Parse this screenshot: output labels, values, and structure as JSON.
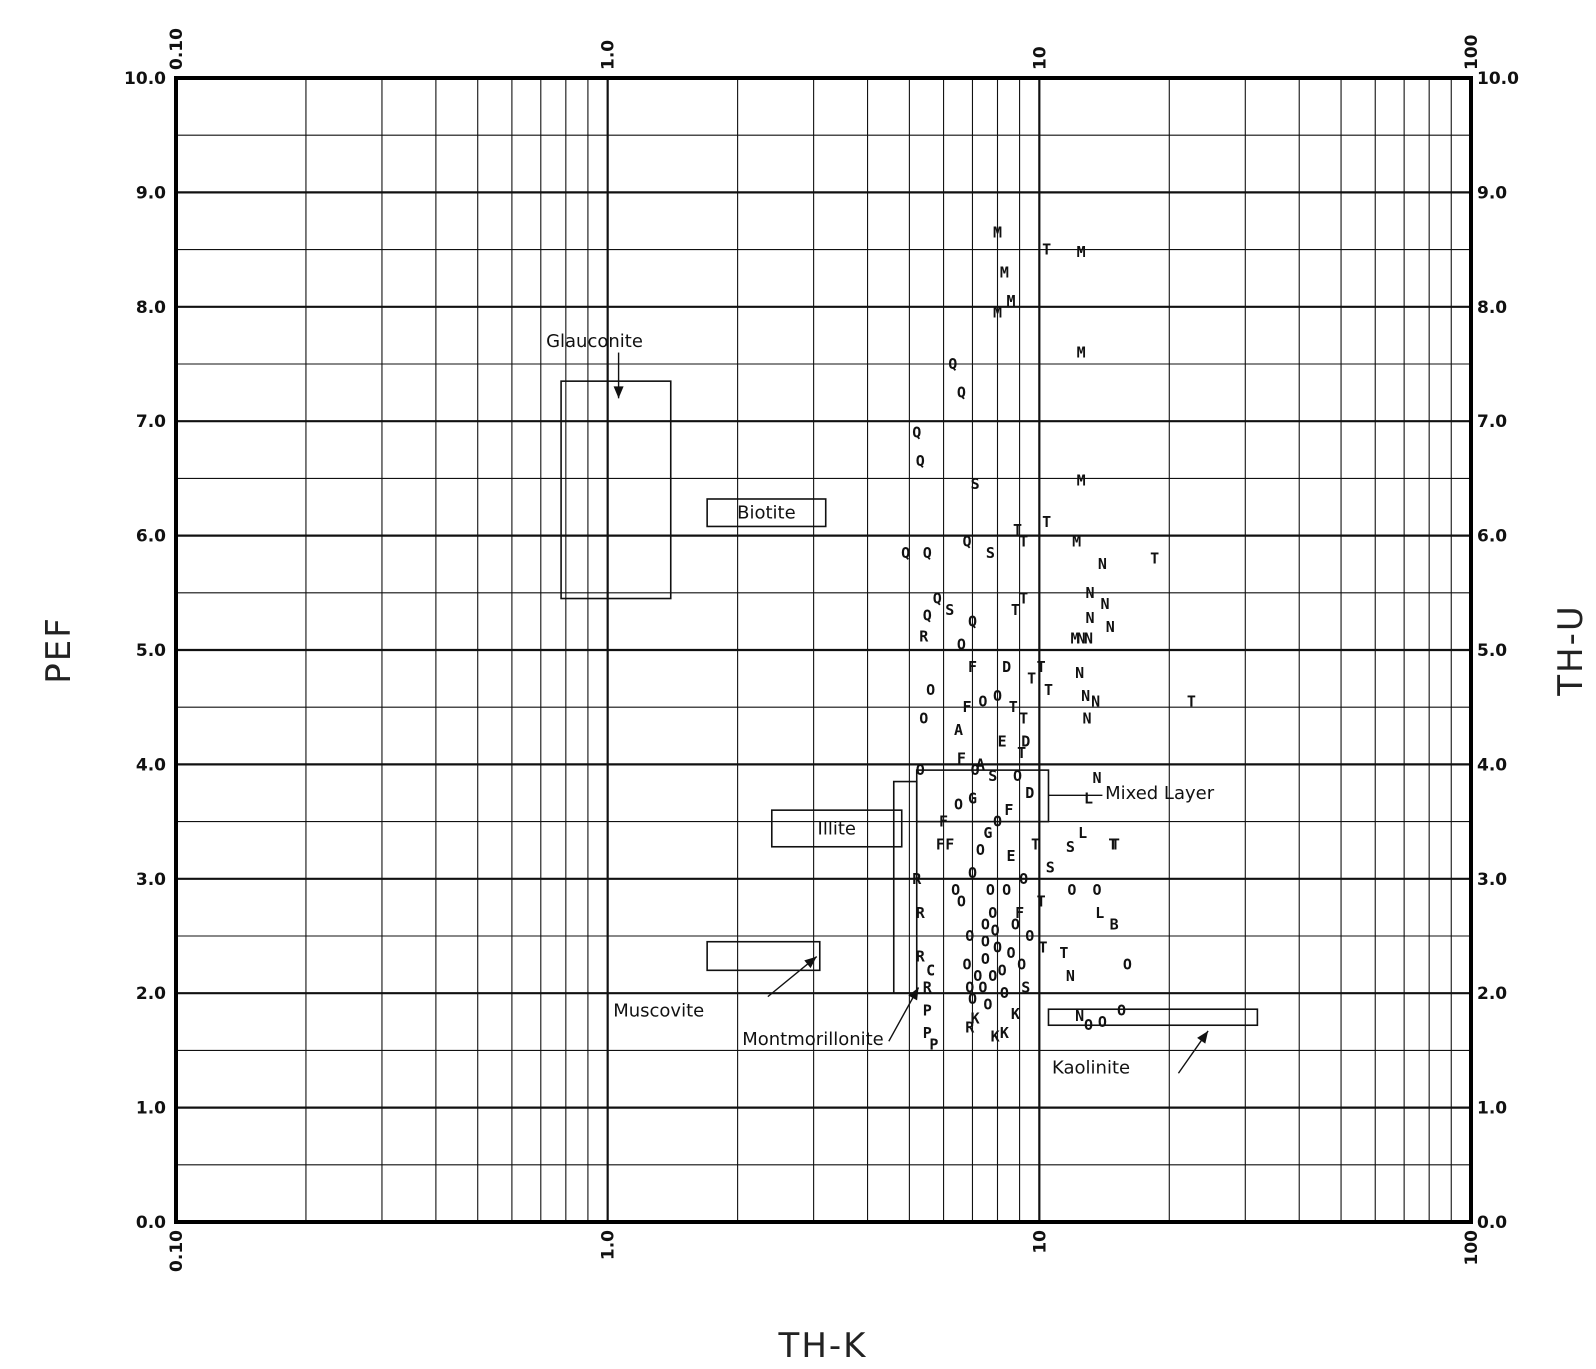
{
  "chart_data": {
    "type": "scatter",
    "title": "",
    "xlabel": "TH-K",
    "ylabel": "PEF",
    "y2label": "TH-U",
    "x_scale": "log",
    "xlim": [
      0.1,
      100
    ],
    "ylim": [
      0,
      10
    ],
    "y2lim": [
      0,
      10
    ],
    "x_ticks_bottom": [
      "0.10",
      "1.0",
      "10",
      "100"
    ],
    "x_ticks_top": [
      "0.10",
      "1.0",
      "10",
      "100"
    ],
    "y_ticks": [
      "0.0",
      "1.0",
      "2.0",
      "3.0",
      "4.0",
      "5.0",
      "6.0",
      "7.0",
      "8.0",
      "9.0",
      "10.0"
    ],
    "y2_ticks": [
      "0.0",
      "1.0",
      "2.0",
      "3.0",
      "4.0",
      "5.0",
      "6.0",
      "7.0",
      "8.0",
      "9.0",
      "10.0"
    ],
    "grid": true,
    "regions": [
      {
        "name": "Glauconite",
        "x": [
          0.78,
          1.4
        ],
        "y": [
          5.45,
          7.35
        ]
      },
      {
        "name": "Biotite",
        "x": [
          1.7,
          3.2
        ],
        "y": [
          6.08,
          6.32
        ]
      },
      {
        "name": "Illite",
        "x": [
          2.4,
          4.8
        ],
        "y": [
          3.28,
          3.6
        ]
      },
      {
        "name": "Muscovite",
        "x": [
          1.7,
          3.1
        ],
        "y": [
          2.2,
          2.45
        ]
      },
      {
        "name": "Montmorillonite",
        "x": [
          4.6,
          5.2
        ],
        "y": [
          2.0,
          3.85
        ]
      },
      {
        "name": "Mixed Layer",
        "x": [
          5.2,
          10.5
        ],
        "y": [
          3.5,
          3.95
        ]
      },
      {
        "name": "Kaolinite",
        "x": [
          10.5,
          32
        ],
        "y": [
          1.72,
          1.86
        ]
      }
    ],
    "points": [
      {
        "x": 8.0,
        "y": 8.65,
        "label": "M"
      },
      {
        "x": 8.3,
        "y": 8.3,
        "label": "M"
      },
      {
        "x": 8.6,
        "y": 8.05,
        "label": "M"
      },
      {
        "x": 8.0,
        "y": 7.95,
        "label": "M"
      },
      {
        "x": 12.5,
        "y": 8.48,
        "label": "M"
      },
      {
        "x": 10.4,
        "y": 8.5,
        "label": "T"
      },
      {
        "x": 12.5,
        "y": 7.6,
        "label": "M"
      },
      {
        "x": 12.5,
        "y": 6.48,
        "label": "M"
      },
      {
        "x": 12.2,
        "y": 5.95,
        "label": "M"
      },
      {
        "x": 12.1,
        "y": 5.1,
        "label": "M"
      },
      {
        "x": 6.3,
        "y": 7.5,
        "label": "Q"
      },
      {
        "x": 6.6,
        "y": 7.25,
        "label": "Q"
      },
      {
        "x": 5.2,
        "y": 6.9,
        "label": "Q"
      },
      {
        "x": 5.3,
        "y": 6.65,
        "label": "Q"
      },
      {
        "x": 4.9,
        "y": 5.85,
        "label": "Q"
      },
      {
        "x": 5.5,
        "y": 5.85,
        "label": "Q"
      },
      {
        "x": 6.8,
        "y": 5.95,
        "label": "Q"
      },
      {
        "x": 5.8,
        "y": 5.45,
        "label": "Q"
      },
      {
        "x": 5.5,
        "y": 5.3,
        "label": "Q"
      },
      {
        "x": 7.0,
        "y": 5.25,
        "label": "Q"
      },
      {
        "x": 6.6,
        "y": 5.05,
        "label": "O"
      },
      {
        "x": 5.6,
        "y": 4.65,
        "label": "O"
      },
      {
        "x": 5.4,
        "y": 4.4,
        "label": "O"
      },
      {
        "x": 5.3,
        "y": 3.95,
        "label": "O"
      },
      {
        "x": 6.6,
        "y": 2.8,
        "label": "O"
      },
      {
        "x": 7.1,
        "y": 6.45,
        "label": "S"
      },
      {
        "x": 7.7,
        "y": 5.85,
        "label": "S"
      },
      {
        "x": 6.2,
        "y": 5.35,
        "label": "S"
      },
      {
        "x": 5.4,
        "y": 5.12,
        "label": "R"
      },
      {
        "x": 8.9,
        "y": 6.05,
        "label": "T"
      },
      {
        "x": 10.4,
        "y": 6.12,
        "label": "T"
      },
      {
        "x": 9.2,
        "y": 5.95,
        "label": "T"
      },
      {
        "x": 9.2,
        "y": 5.45,
        "label": "T"
      },
      {
        "x": 8.8,
        "y": 5.35,
        "label": "T"
      },
      {
        "x": 18.5,
        "y": 5.8,
        "label": "T"
      },
      {
        "x": 22.5,
        "y": 4.55,
        "label": "T"
      },
      {
        "x": 14.0,
        "y": 5.75,
        "label": "N"
      },
      {
        "x": 13.1,
        "y": 5.5,
        "label": "N"
      },
      {
        "x": 14.2,
        "y": 5.4,
        "label": "N"
      },
      {
        "x": 13.1,
        "y": 5.28,
        "label": "N"
      },
      {
        "x": 14.6,
        "y": 5.2,
        "label": "N"
      },
      {
        "x": 12.5,
        "y": 5.1,
        "label": "N"
      },
      {
        "x": 13.0,
        "y": 5.1,
        "label": "N"
      },
      {
        "x": 12.4,
        "y": 4.8,
        "label": "N"
      },
      {
        "x": 12.8,
        "y": 4.6,
        "label": "N"
      },
      {
        "x": 13.5,
        "y": 4.55,
        "label": "N"
      },
      {
        "x": 12.9,
        "y": 4.4,
        "label": "N"
      },
      {
        "x": 13.6,
        "y": 3.88,
        "label": "N"
      },
      {
        "x": 12.6,
        "y": 3.4,
        "label": "L"
      },
      {
        "x": 13.0,
        "y": 3.7,
        "label": "L"
      },
      {
        "x": 15.0,
        "y": 3.3,
        "label": "T"
      },
      {
        "x": 14.8,
        "y": 3.3,
        "label": "T"
      },
      {
        "x": 11.8,
        "y": 3.28,
        "label": "S"
      },
      {
        "x": 11.9,
        "y": 2.9,
        "label": "O"
      },
      {
        "x": 13.6,
        "y": 2.9,
        "label": "O"
      },
      {
        "x": 13.8,
        "y": 2.7,
        "label": "L"
      },
      {
        "x": 14.9,
        "y": 2.6,
        "label": "B"
      },
      {
        "x": 11.4,
        "y": 2.35,
        "label": "T"
      },
      {
        "x": 16.0,
        "y": 2.25,
        "label": "O"
      },
      {
        "x": 11.8,
        "y": 2.15,
        "label": "N"
      },
      {
        "x": 12.4,
        "y": 1.8,
        "label": "N"
      },
      {
        "x": 15.5,
        "y": 1.85,
        "label": "O"
      },
      {
        "x": 14.0,
        "y": 1.75,
        "label": "O"
      },
      {
        "x": 13.0,
        "y": 1.72,
        "label": "O"
      },
      {
        "x": 5.2,
        "y": 3.0,
        "label": "R"
      },
      {
        "x": 5.3,
        "y": 2.7,
        "label": "R"
      },
      {
        "x": 5.3,
        "y": 2.32,
        "label": "R"
      },
      {
        "x": 5.6,
        "y": 2.2,
        "label": "C"
      },
      {
        "x": 5.5,
        "y": 2.05,
        "label": "R"
      },
      {
        "x": 5.5,
        "y": 1.85,
        "label": "P"
      },
      {
        "x": 5.5,
        "y": 1.65,
        "label": "P"
      },
      {
        "x": 5.7,
        "y": 1.55,
        "label": "P"
      },
      {
        "x": 6.0,
        "y": 3.5,
        "label": "F"
      },
      {
        "x": 5.9,
        "y": 3.3,
        "label": "F"
      },
      {
        "x": 6.2,
        "y": 3.3,
        "label": "F"
      },
      {
        "x": 6.5,
        "y": 4.3,
        "label": "A"
      },
      {
        "x": 6.8,
        "y": 4.5,
        "label": "F"
      },
      {
        "x": 7.3,
        "y": 4.0,
        "label": "A"
      },
      {
        "x": 7.0,
        "y": 3.7,
        "label": "G"
      },
      {
        "x": 7.6,
        "y": 3.4,
        "label": "G"
      },
      {
        "x": 8.2,
        "y": 4.2,
        "label": "E"
      },
      {
        "x": 8.6,
        "y": 3.2,
        "label": "E"
      },
      {
        "x": 9.5,
        "y": 3.75,
        "label": "D"
      },
      {
        "x": 8.4,
        "y": 4.85,
        "label": "D"
      },
      {
        "x": 9.3,
        "y": 4.2,
        "label": "D"
      },
      {
        "x": 6.6,
        "y": 4.05,
        "label": "F"
      },
      {
        "x": 7.0,
        "y": 3.05,
        "label": "O"
      },
      {
        "x": 7.5,
        "y": 2.6,
        "label": "O"
      },
      {
        "x": 8.0,
        "y": 2.4,
        "label": "O"
      },
      {
        "x": 7.8,
        "y": 2.15,
        "label": "O"
      },
      {
        "x": 7.4,
        "y": 2.05,
        "label": "O"
      },
      {
        "x": 7.0,
        "y": 1.95,
        "label": "O"
      },
      {
        "x": 7.1,
        "y": 1.78,
        "label": "K"
      },
      {
        "x": 6.9,
        "y": 1.7,
        "label": "R"
      },
      {
        "x": 7.9,
        "y": 1.62,
        "label": "K"
      },
      {
        "x": 8.3,
        "y": 1.65,
        "label": "K"
      },
      {
        "x": 8.8,
        "y": 1.82,
        "label": "K"
      },
      {
        "x": 9.3,
        "y": 2.05,
        "label": "S"
      },
      {
        "x": 10.2,
        "y": 2.4,
        "label": "T"
      },
      {
        "x": 10.1,
        "y": 2.8,
        "label": "T"
      },
      {
        "x": 9.8,
        "y": 3.3,
        "label": "T"
      },
      {
        "x": 10.6,
        "y": 3.1,
        "label": "S"
      },
      {
        "x": 9.1,
        "y": 4.1,
        "label": "T"
      },
      {
        "x": 10.5,
        "y": 4.65,
        "label": "T"
      },
      {
        "x": 9.6,
        "y": 4.75,
        "label": "T"
      },
      {
        "x": 10.1,
        "y": 4.85,
        "label": "T"
      },
      {
        "x": 9.2,
        "y": 4.4,
        "label": "T"
      },
      {
        "x": 8.7,
        "y": 4.5,
        "label": "T"
      },
      {
        "x": 7.4,
        "y": 4.55,
        "label": "O"
      },
      {
        "x": 8.0,
        "y": 4.6,
        "label": "O"
      },
      {
        "x": 7.0,
        "y": 4.85,
        "label": "F"
      },
      {
        "x": 7.8,
        "y": 3.9,
        "label": "S"
      },
      {
        "x": 8.5,
        "y": 3.6,
        "label": "F"
      },
      {
        "x": 9.0,
        "y": 2.7,
        "label": "F"
      },
      {
        "x": 6.4,
        "y": 2.9,
        "label": "O"
      },
      {
        "x": 7.7,
        "y": 2.9,
        "label": "O"
      },
      {
        "x": 8.8,
        "y": 2.6,
        "label": "O"
      },
      {
        "x": 9.5,
        "y": 2.5,
        "label": "O"
      },
      {
        "x": 6.9,
        "y": 2.5,
        "label": "O"
      },
      {
        "x": 7.5,
        "y": 2.3,
        "label": "O"
      },
      {
        "x": 8.2,
        "y": 2.2,
        "label": "O"
      },
      {
        "x": 7.2,
        "y": 2.15,
        "label": "O"
      },
      {
        "x": 6.8,
        "y": 2.25,
        "label": "O"
      },
      {
        "x": 7.8,
        "y": 2.7,
        "label": "O"
      },
      {
        "x": 8.4,
        "y": 2.9,
        "label": "O"
      },
      {
        "x": 7.3,
        "y": 3.25,
        "label": "O"
      },
      {
        "x": 8.0,
        "y": 3.5,
        "label": "O"
      },
      {
        "x": 9.2,
        "y": 3.0,
        "label": "O"
      },
      {
        "x": 7.6,
        "y": 1.9,
        "label": "O"
      },
      {
        "x": 8.6,
        "y": 2.35,
        "label": "O"
      },
      {
        "x": 9.1,
        "y": 2.25,
        "label": "O"
      },
      {
        "x": 6.5,
        "y": 3.65,
        "label": "O"
      },
      {
        "x": 7.1,
        "y": 3.95,
        "label": "O"
      },
      {
        "x": 8.9,
        "y": 3.9,
        "label": "O"
      },
      {
        "x": 7.5,
        "y": 2.45,
        "label": "O"
      },
      {
        "x": 7.9,
        "y": 2.55,
        "label": "O"
      },
      {
        "x": 8.3,
        "y": 2.0,
        "label": "O"
      },
      {
        "x": 6.9,
        "y": 2.05,
        "label": "O"
      }
    ]
  }
}
